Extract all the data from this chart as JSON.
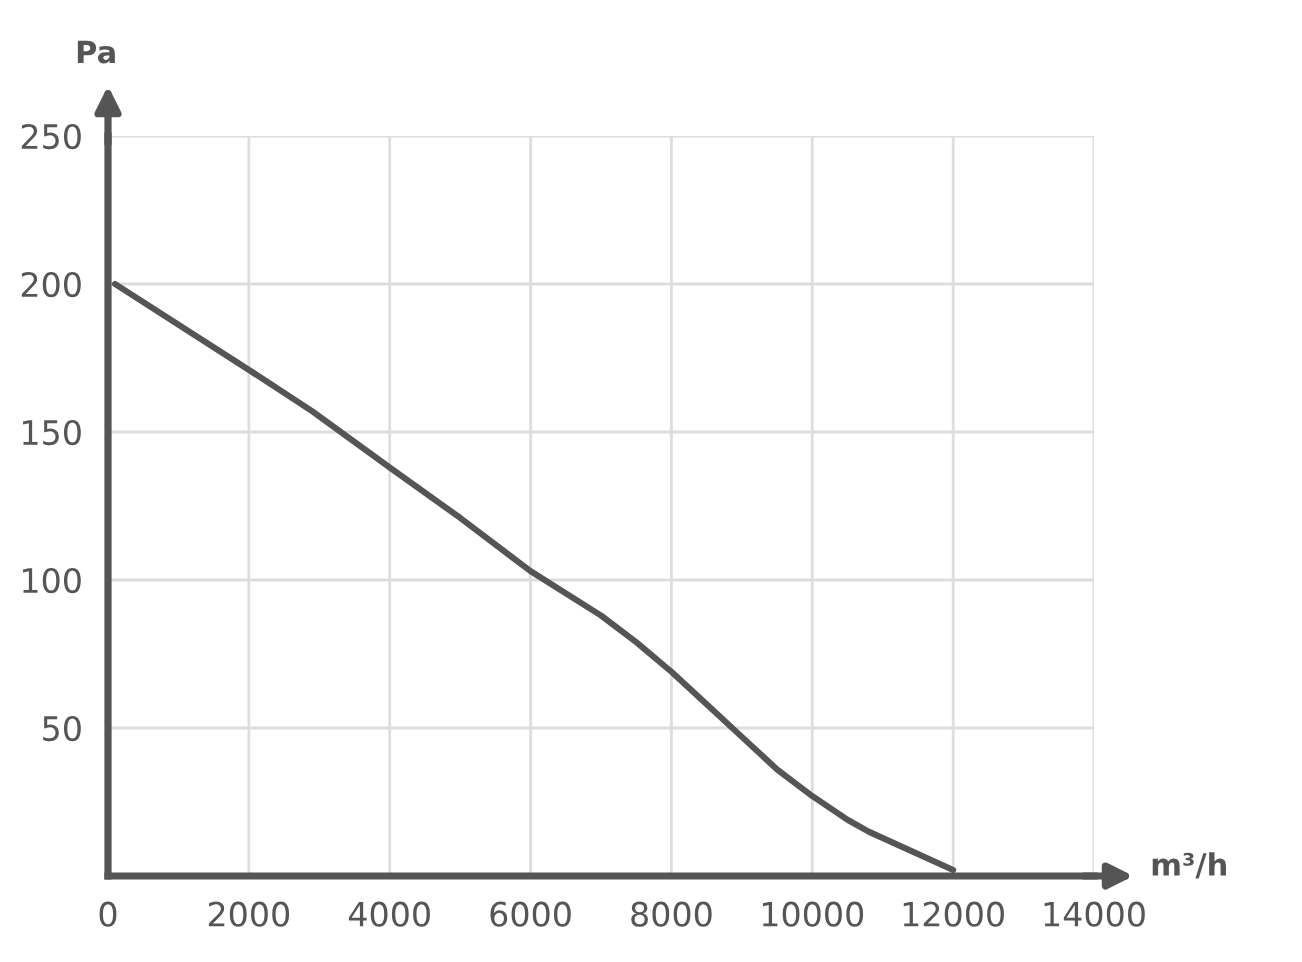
{
  "chart_data": {
    "type": "line",
    "xlabel": "m³/h",
    "ylabel": "Pa",
    "x": [
      100,
      2000,
      2900,
      4000,
      5000,
      6000,
      7000,
      7500,
      8000,
      8500,
      9000,
      9500,
      10000,
      10500,
      10800,
      12000
    ],
    "series": [
      {
        "color": "#555555",
        "values": [
          200,
          171,
          157,
          138,
          121,
          103,
          88,
          79,
          69,
          58,
          47,
          36,
          27,
          19,
          15,
          2
        ]
      }
    ],
    "xlim": [
      0,
      14000
    ],
    "ylim": [
      0,
      250
    ],
    "xticks": [
      0,
      2000,
      4000,
      6000,
      8000,
      10000,
      12000,
      14000
    ],
    "yticks": [
      50,
      100,
      150,
      200,
      250
    ],
    "grid": true,
    "marker": "none",
    "line_style": "solid"
  }
}
